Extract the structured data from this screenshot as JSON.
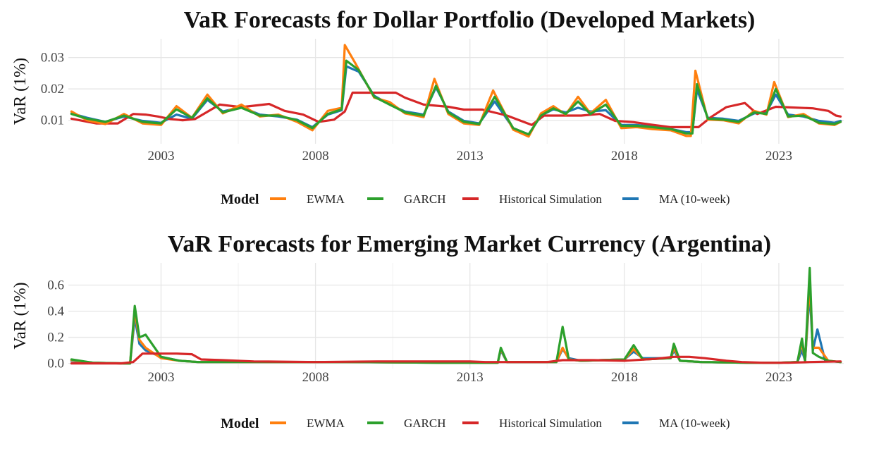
{
  "chart_data": [
    {
      "type": "line",
      "title": "VaR Forecasts for Dollar Portfolio (Developed Markets)",
      "ylabel": "VaR (1%)",
      "xlabel": "",
      "x_range": [
        2000.0,
        2025.1
      ],
      "ylim": [
        0.0025,
        0.036
      ],
      "x_ticks": [
        2003,
        2008,
        2013,
        2018,
        2023
      ],
      "y_ticks": [
        0.01,
        0.02,
        0.03
      ],
      "y_tick_labels": [
        "0.01",
        "0.02",
        "0.03"
      ],
      "grid": true,
      "legend": {
        "title": "Model",
        "placement": "bottom"
      },
      "series": [
        {
          "name": "MA (10-week)",
          "color": "#1f77b4",
          "x": [
            2000.1,
            2000.6,
            2001.2,
            2001.8,
            2002.4,
            2003.0,
            2003.5,
            2004.0,
            2004.5,
            2005.0,
            2005.6,
            2006.2,
            2006.8,
            2007.4,
            2007.9,
            2008.4,
            2008.85,
            2009.0,
            2009.4,
            2009.9,
            2010.4,
            2010.9,
            2011.5,
            2011.9,
            2012.3,
            2012.8,
            2013.3,
            2013.8,
            2014.4,
            2014.9,
            2015.3,
            2015.7,
            2016.1,
            2016.5,
            2016.9,
            2017.4,
            2017.9,
            2018.4,
            2018.9,
            2019.5,
            2020.0,
            2020.2,
            2020.35,
            2020.7,
            2021.2,
            2021.7,
            2022.2,
            2022.6,
            2022.9,
            2023.3,
            2023.8,
            2024.3,
            2024.8,
            2025.0
          ],
          "y": [
            0.0122,
            0.0108,
            0.0095,
            0.0112,
            0.0098,
            0.0092,
            0.0118,
            0.0105,
            0.0165,
            0.0128,
            0.0142,
            0.0118,
            0.0112,
            0.0102,
            0.0078,
            0.0118,
            0.0132,
            0.0272,
            0.0255,
            0.0178,
            0.015,
            0.0128,
            0.0118,
            0.0205,
            0.0128,
            0.0098,
            0.009,
            0.016,
            0.0075,
            0.0055,
            0.0115,
            0.0135,
            0.0125,
            0.014,
            0.0128,
            0.0132,
            0.0085,
            0.0085,
            0.008,
            0.0072,
            0.0062,
            0.0062,
            0.0198,
            0.0108,
            0.0105,
            0.0098,
            0.0122,
            0.0125,
            0.0182,
            0.0118,
            0.0112,
            0.0098,
            0.0092,
            0.0098
          ]
        },
        {
          "name": "Historical Simulation",
          "color": "#d62728",
          "x": [
            2000.1,
            2000.9,
            2001.6,
            2002.1,
            2002.5,
            2002.9,
            2003.3,
            2003.7,
            2004.1,
            2004.9,
            2005.6,
            2006.5,
            2007.0,
            2007.6,
            2008.1,
            2008.6,
            2008.95,
            2009.2,
            2010.6,
            2010.9,
            2011.5,
            2012.3,
            2012.8,
            2013.4,
            2014.2,
            2015.0,
            2015.4,
            2016.6,
            2017.2,
            2017.7,
            2018.3,
            2018.8,
            2019.5,
            2020.0,
            2020.4,
            2020.8,
            2021.3,
            2021.9,
            2022.3,
            2022.9,
            2024.1,
            2024.6,
            2024.85,
            2025.0
          ],
          "y": [
            0.0105,
            0.009,
            0.009,
            0.012,
            0.0118,
            0.0112,
            0.0104,
            0.01,
            0.0104,
            0.015,
            0.0142,
            0.0152,
            0.013,
            0.0118,
            0.0095,
            0.0102,
            0.0128,
            0.0188,
            0.0188,
            0.0172,
            0.015,
            0.0143,
            0.0134,
            0.0134,
            0.0115,
            0.0085,
            0.0115,
            0.0115,
            0.012,
            0.0098,
            0.0094,
            0.0087,
            0.0078,
            0.0078,
            0.0078,
            0.011,
            0.0142,
            0.0155,
            0.012,
            0.0143,
            0.0138,
            0.013,
            0.0115,
            0.0112
          ]
        },
        {
          "name": "EWMA",
          "color": "#ff7f0e",
          "x": [
            2000.1,
            2000.6,
            2001.2,
            2001.8,
            2002.4,
            2003.0,
            2003.5,
            2004.0,
            2004.5,
            2005.0,
            2005.6,
            2006.2,
            2006.8,
            2007.4,
            2007.9,
            2008.4,
            2008.85,
            2008.95,
            2009.3,
            2009.9,
            2010.4,
            2010.9,
            2011.5,
            2011.85,
            2012.3,
            2012.8,
            2013.3,
            2013.75,
            2014.4,
            2014.9,
            2015.3,
            2015.7,
            2016.1,
            2016.5,
            2016.9,
            2017.4,
            2017.9,
            2018.4,
            2018.9,
            2019.5,
            2020.0,
            2020.15,
            2020.3,
            2020.7,
            2021.2,
            2021.7,
            2022.2,
            2022.6,
            2022.85,
            2023.3,
            2023.8,
            2024.3,
            2024.8,
            2025.0
          ],
          "y": [
            0.0128,
            0.01,
            0.0088,
            0.012,
            0.009,
            0.0085,
            0.0145,
            0.0108,
            0.0182,
            0.0122,
            0.015,
            0.0112,
            0.0118,
            0.0095,
            0.0068,
            0.013,
            0.014,
            0.034,
            0.028,
            0.0172,
            0.0158,
            0.0122,
            0.011,
            0.0232,
            0.012,
            0.009,
            0.0085,
            0.0195,
            0.007,
            0.0048,
            0.0122,
            0.0145,
            0.0118,
            0.0175,
            0.0122,
            0.0165,
            0.0075,
            0.0078,
            0.0072,
            0.0068,
            0.005,
            0.005,
            0.0258,
            0.0102,
            0.01,
            0.009,
            0.013,
            0.0118,
            0.0222,
            0.011,
            0.012,
            0.009,
            0.0085,
            0.0095
          ]
        },
        {
          "name": "GARCH",
          "color": "#2ca02c",
          "x": [
            2000.1,
            2000.6,
            2001.2,
            2001.8,
            2002.4,
            2003.0,
            2003.5,
            2004.0,
            2004.5,
            2005.0,
            2005.6,
            2006.2,
            2006.8,
            2007.4,
            2007.9,
            2008.4,
            2008.85,
            2009.0,
            2009.4,
            2009.9,
            2010.4,
            2010.9,
            2011.5,
            2011.9,
            2012.3,
            2012.8,
            2013.3,
            2013.8,
            2014.4,
            2014.9,
            2015.3,
            2015.7,
            2016.1,
            2016.5,
            2016.9,
            2017.4,
            2017.9,
            2018.4,
            2018.9,
            2019.5,
            2020.0,
            2020.2,
            2020.35,
            2020.7,
            2021.2,
            2021.7,
            2022.2,
            2022.6,
            2022.9,
            2023.3,
            2023.8,
            2024.3,
            2024.8,
            2025.0
          ],
          "y": [
            0.012,
            0.0105,
            0.0095,
            0.0115,
            0.0095,
            0.009,
            0.0135,
            0.0108,
            0.017,
            0.0125,
            0.014,
            0.0115,
            0.0115,
            0.01,
            0.0075,
            0.012,
            0.0135,
            0.029,
            0.026,
            0.0175,
            0.015,
            0.0125,
            0.0115,
            0.021,
            0.0125,
            0.0095,
            0.0088,
            0.0175,
            0.0075,
            0.0055,
            0.0115,
            0.0138,
            0.012,
            0.016,
            0.012,
            0.015,
            0.0082,
            0.0082,
            0.0078,
            0.0072,
            0.0058,
            0.0058,
            0.0215,
            0.0105,
            0.0102,
            0.0095,
            0.0125,
            0.012,
            0.02,
            0.0112,
            0.0115,
            0.0092,
            0.0088,
            0.0095
          ]
        }
      ]
    },
    {
      "type": "line",
      "title": "VaR Forecasts for Emerging Market Currency (Argentina)",
      "ylabel": "VaR (1%)",
      "xlabel": "",
      "x_range": [
        2000.0,
        2025.1
      ],
      "ylim": [
        -0.04,
        0.77
      ],
      "x_ticks": [
        2003,
        2008,
        2013,
        2018,
        2023
      ],
      "y_ticks": [
        0.0,
        0.2,
        0.4,
        0.6
      ],
      "y_tick_labels": [
        "0.0",
        "0.2",
        "0.4",
        "0.6"
      ],
      "grid": true,
      "legend": {
        "title": "Model",
        "placement": "bottom"
      },
      "series": [
        {
          "name": "MA (10-week)",
          "color": "#1f77b4",
          "x": [
            2000.1,
            2000.8,
            2001.8,
            2002.0,
            2002.15,
            2002.3,
            2002.5,
            2003.0,
            2003.6,
            2004.2,
            2006.0,
            2009.0,
            2012.0,
            2013.9,
            2014.0,
            2014.2,
            2015.8,
            2016.0,
            2016.2,
            2016.6,
            2018.0,
            2018.3,
            2018.6,
            2019.5,
            2019.6,
            2019.8,
            2020.5,
            2022.0,
            2023.0,
            2023.6,
            2023.75,
            2023.85,
            2024.0,
            2024.1,
            2024.25,
            2024.5,
            2025.0
          ],
          "y": [
            0.02,
            0.005,
            0.0,
            0.0,
            0.35,
            0.15,
            0.1,
            0.05,
            0.02,
            0.01,
            0.01,
            0.01,
            0.005,
            0.005,
            0.1,
            0.01,
            0.01,
            0.11,
            0.04,
            0.02,
            0.03,
            0.09,
            0.04,
            0.04,
            0.1,
            0.02,
            0.01,
            0.005,
            0.005,
            0.01,
            0.1,
            0.02,
            0.55,
            0.1,
            0.26,
            0.02,
            0.01
          ]
        },
        {
          "name": "EWMA",
          "color": "#ff7f0e",
          "x": [
            2000.1,
            2000.8,
            2001.8,
            2002.0,
            2002.15,
            2002.3,
            2002.5,
            2003.0,
            2003.6,
            2004.2,
            2006.0,
            2009.0,
            2012.0,
            2013.9,
            2014.0,
            2014.2,
            2015.8,
            2016.0,
            2016.2,
            2016.6,
            2018.0,
            2018.3,
            2018.6,
            2019.5,
            2019.6,
            2019.8,
            2020.5,
            2022.0,
            2023.0,
            2023.6,
            2023.75,
            2023.85,
            2024.0,
            2024.1,
            2024.3,
            2024.6,
            2025.0
          ],
          "y": [
            0.025,
            0.005,
            0.0,
            0.0,
            0.4,
            0.18,
            0.12,
            0.04,
            0.02,
            0.01,
            0.01,
            0.01,
            0.005,
            0.005,
            0.11,
            0.01,
            0.01,
            0.12,
            0.03,
            0.02,
            0.03,
            0.11,
            0.03,
            0.04,
            0.12,
            0.02,
            0.01,
            0.005,
            0.005,
            0.01,
            0.16,
            0.02,
            0.62,
            0.12,
            0.12,
            0.02,
            0.01
          ]
        },
        {
          "name": "GARCH",
          "color": "#2ca02c",
          "x": [
            2000.1,
            2000.8,
            2001.8,
            2002.0,
            2002.15,
            2002.3,
            2002.5,
            2003.0,
            2003.6,
            2004.2,
            2006.0,
            2009.0,
            2012.0,
            2013.9,
            2014.0,
            2014.2,
            2015.8,
            2016.0,
            2016.2,
            2016.6,
            2018.0,
            2018.3,
            2018.6,
            2019.5,
            2019.6,
            2019.8,
            2020.5,
            2022.0,
            2023.0,
            2023.6,
            2023.75,
            2023.85,
            2024.0,
            2024.1,
            2024.3,
            2024.6,
            2025.0
          ],
          "y": [
            0.03,
            0.005,
            0.0,
            0.0,
            0.44,
            0.2,
            0.22,
            0.05,
            0.02,
            0.01,
            0.01,
            0.01,
            0.005,
            0.005,
            0.12,
            0.01,
            0.01,
            0.28,
            0.03,
            0.02,
            0.03,
            0.14,
            0.03,
            0.04,
            0.15,
            0.02,
            0.01,
            0.005,
            0.005,
            0.01,
            0.19,
            0.02,
            0.73,
            0.08,
            0.05,
            0.02,
            0.01
          ]
        },
        {
          "name": "Historical Simulation",
          "color": "#d62728",
          "x": [
            2000.1,
            2001.0,
            2001.7,
            2002.1,
            2002.4,
            2003.5,
            2004.0,
            2004.3,
            2005.0,
            2006.0,
            2008.0,
            2010.0,
            2013.0,
            2013.5,
            2014.5,
            2015.5,
            2016.0,
            2017.0,
            2018.0,
            2019.0,
            2019.6,
            2020.1,
            2020.6,
            2021.3,
            2021.8,
            2022.5,
            2023.3,
            2024.0,
            2025.0
          ],
          "y": [
            0.0,
            0.0,
            0.0,
            0.01,
            0.075,
            0.075,
            0.07,
            0.03,
            0.025,
            0.015,
            0.01,
            0.015,
            0.015,
            0.01,
            0.01,
            0.01,
            0.025,
            0.025,
            0.02,
            0.035,
            0.05,
            0.05,
            0.04,
            0.02,
            0.01,
            0.005,
            0.005,
            0.01,
            0.015
          ]
        }
      ]
    }
  ]
}
